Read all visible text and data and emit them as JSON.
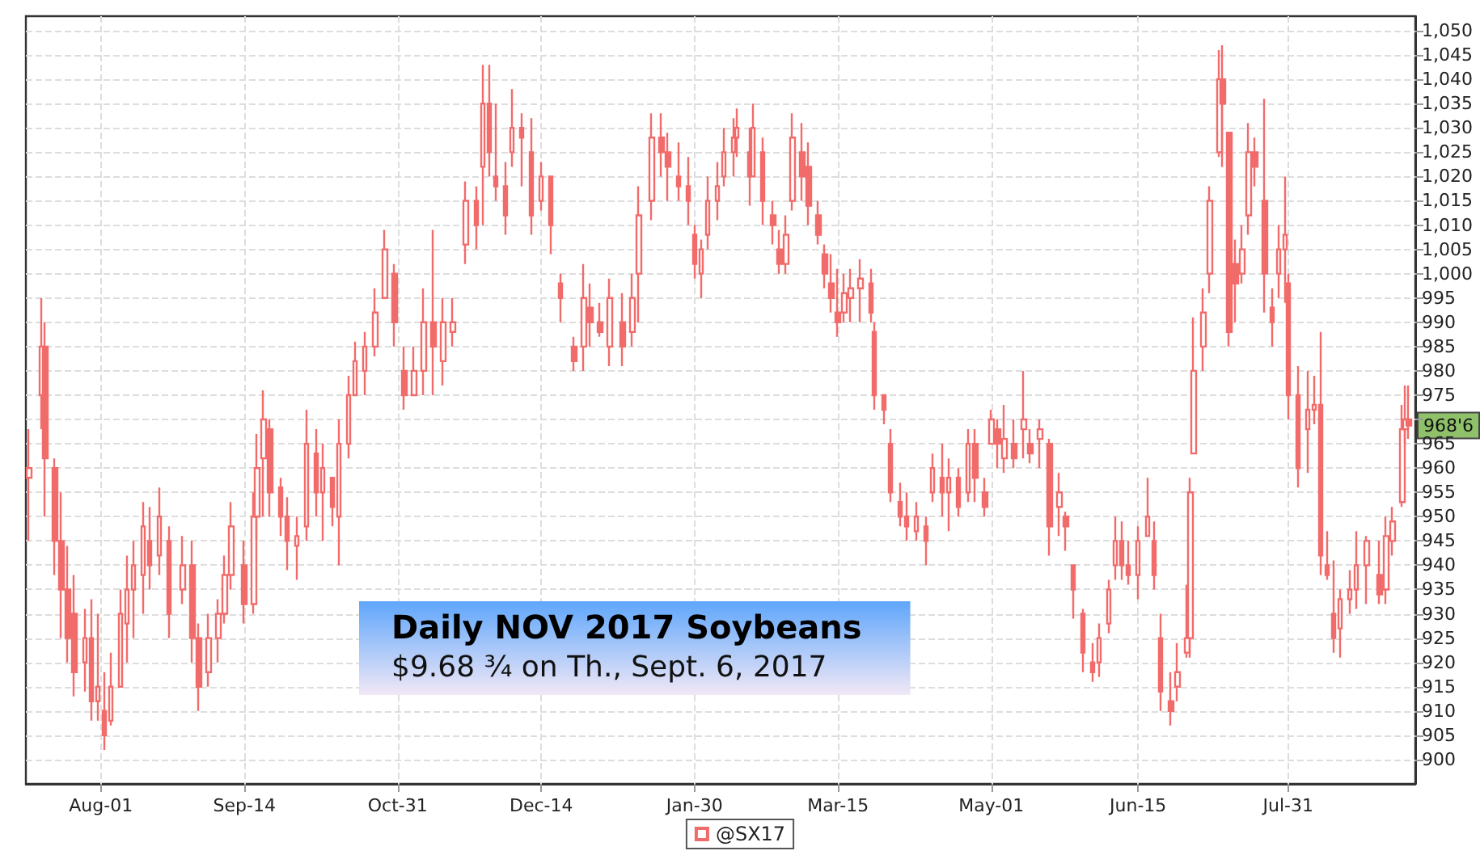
{
  "chart_data": {
    "type": "candlestick",
    "title": "Daily NOV 2017 Soybeans",
    "subtitle": "$9.68 ¾ on Th., Sept. 6, 2017",
    "series": [
      {
        "name": "@SX17",
        "color": "#f26b6b",
        "x": [
          "2016-07-10",
          "2016-07-14",
          "2016-07-15",
          "2016-07-18",
          "2016-07-20",
          "2016-07-22",
          "2016-07-24",
          "2016-07-27",
          "2016-07-29",
          "2016-07-31",
          "2016-08-02",
          "2016-08-04",
          "2016-08-07",
          "2016-08-09",
          "2016-08-11",
          "2016-08-14",
          "2016-08-16",
          "2016-08-19",
          "2016-08-22",
          "2016-08-26",
          "2016-08-29",
          "2016-08-31",
          "2016-09-03",
          "2016-09-06",
          "2016-09-08",
          "2016-09-10",
          "2016-09-14",
          "2016-09-17",
          "2016-09-18",
          "2016-09-20",
          "2016-09-22",
          "2016-09-25",
          "2016-09-27",
          "2016-09-30",
          "2016-10-03",
          "2016-10-06",
          "2016-10-08",
          "2016-10-11",
          "2016-10-13",
          "2016-10-16",
          "2016-10-18",
          "2016-10-21",
          "2016-10-24",
          "2016-10-27",
          "2016-10-30",
          "2016-11-02",
          "2016-11-05",
          "2016-11-08",
          "2016-11-11",
          "2016-11-14",
          "2016-11-17",
          "2016-11-21",
          "2016-11-24",
          "2016-11-26",
          "2016-11-28",
          "2016-11-30",
          "2016-12-03",
          "2016-12-05",
          "2016-12-08",
          "2016-12-11",
          "2016-12-14",
          "2016-12-17",
          "2016-12-20",
          "2016-12-24",
          "2016-12-27",
          "2016-12-29",
          "2017-01-01",
          "2017-01-04",
          "2017-01-08",
          "2017-01-11",
          "2017-01-13",
          "2017-01-17",
          "2017-01-20",
          "2017-01-22",
          "2017-01-25",
          "2017-01-28",
          "2017-01-30",
          "2017-02-01",
          "2017-02-03",
          "2017-02-06",
          "2017-02-08",
          "2017-02-11",
          "2017-02-12",
          "2017-02-16",
          "2017-02-17",
          "2017-02-20",
          "2017-02-23",
          "2017-02-25",
          "2017-02-27",
          "2017-03-01",
          "2017-03-04",
          "2017-03-06",
          "2017-03-09",
          "2017-03-11",
          "2017-03-13",
          "2017-03-15",
          "2017-03-17",
          "2017-03-19",
          "2017-03-22",
          "2017-03-25",
          "2017-03-26",
          "2017-03-29",
          "2017-03-31",
          "2017-04-03",
          "2017-04-05",
          "2017-04-08",
          "2017-04-11",
          "2017-04-13",
          "2017-04-16",
          "2017-04-18",
          "2017-04-21",
          "2017-04-24",
          "2017-04-26",
          "2017-04-29",
          "2017-05-01",
          "2017-05-03",
          "2017-05-05",
          "2017-05-08",
          "2017-05-11",
          "2017-05-13",
          "2017-05-16",
          "2017-05-19",
          "2017-05-22",
          "2017-05-24",
          "2017-05-26",
          "2017-05-29",
          "2017-06-01",
          "2017-06-03",
          "2017-06-06",
          "2017-06-08",
          "2017-06-10",
          "2017-06-12",
          "2017-06-15",
          "2017-06-18",
          "2017-06-20",
          "2017-06-22",
          "2017-06-25",
          "2017-06-27",
          "2017-06-30",
          "2017-07-01",
          "2017-07-02",
          "2017-07-05",
          "2017-07-07",
          "2017-07-10",
          "2017-07-11",
          "2017-07-13",
          "2017-07-15",
          "2017-07-17",
          "2017-07-19",
          "2017-07-21",
          "2017-07-24",
          "2017-07-26",
          "2017-07-28",
          "2017-07-30",
          "2017-07-31",
          "2017-08-03",
          "2017-08-06",
          "2017-08-08",
          "2017-08-10",
          "2017-08-12",
          "2017-08-14",
          "2017-08-16",
          "2017-08-19",
          "2017-08-21",
          "2017-08-24",
          "2017-08-28",
          "2017-08-30",
          "2017-09-01",
          "2017-09-04",
          "2017-09-05",
          "2017-09-06"
        ],
        "ohlc": [
          [
            958,
            968,
            945,
            960
          ],
          [
            975,
            995,
            968,
            985
          ],
          [
            985,
            990,
            950,
            962
          ],
          [
            960,
            962,
            938,
            945
          ],
          [
            945,
            955,
            925,
            935
          ],
          [
            935,
            944,
            920,
            925
          ],
          [
            930,
            938,
            913,
            918
          ],
          [
            920,
            931,
            914,
            925
          ],
          [
            925,
            933,
            908,
            912
          ],
          [
            912,
            930,
            908,
            915
          ],
          [
            910,
            918,
            902,
            905
          ],
          [
            908,
            922,
            907,
            915
          ],
          [
            915,
            935,
            915,
            930
          ],
          [
            928,
            942,
            920,
            935
          ],
          [
            935,
            945,
            925,
            940
          ],
          [
            938,
            953,
            930,
            948
          ],
          [
            945,
            952,
            935,
            940
          ],
          [
            942,
            956,
            938,
            950
          ],
          [
            945,
            948,
            925,
            930
          ],
          [
            935,
            946,
            932,
            940
          ],
          [
            940,
            945,
            920,
            925
          ],
          [
            925,
            928,
            910,
            915
          ],
          [
            918,
            930,
            915,
            925
          ],
          [
            925,
            933,
            920,
            930
          ],
          [
            930,
            942,
            928,
            938
          ],
          [
            938,
            953,
            935,
            948
          ],
          [
            940,
            945,
            928,
            932
          ],
          [
            932,
            955,
            930,
            950
          ],
          [
            950,
            967,
            945,
            960
          ],
          [
            962,
            976,
            950,
            970
          ],
          [
            968,
            970,
            950,
            955
          ],
          [
            956,
            958,
            946,
            950
          ],
          [
            950,
            954,
            939,
            945
          ],
          [
            944,
            950,
            937,
            946
          ],
          [
            948,
            972,
            945,
            965
          ],
          [
            963,
            968,
            950,
            955
          ],
          [
            955,
            965,
            945,
            960
          ],
          [
            958,
            958,
            948,
            952
          ],
          [
            950,
            970,
            940,
            965
          ],
          [
            965,
            979,
            962,
            975
          ],
          [
            975,
            986,
            975,
            982
          ],
          [
            980,
            988,
            975,
            985
          ],
          [
            985,
            997,
            983,
            992
          ],
          [
            995,
            1009,
            995,
            1005
          ],
          [
            1000,
            1002,
            985,
            990
          ],
          [
            980,
            985,
            972,
            975
          ],
          [
            975,
            985,
            975,
            980
          ],
          [
            980,
            997,
            975,
            990
          ],
          [
            990,
            1009,
            975,
            985
          ],
          [
            982,
            995,
            977,
            990
          ],
          [
            988,
            995,
            985,
            990
          ],
          [
            1006,
            1019,
            1002,
            1015
          ],
          [
            1015,
            1018,
            1005,
            1010
          ],
          [
            1022,
            1043,
            1010,
            1035
          ],
          [
            1035,
            1043,
            1020,
            1025
          ],
          [
            1020,
            1035,
            1015,
            1018
          ],
          [
            1018,
            1023,
            1008,
            1012
          ],
          [
            1025,
            1038,
            1022,
            1030
          ],
          [
            1030,
            1033,
            1018,
            1028
          ],
          [
            1025,
            1032,
            1008,
            1012
          ],
          [
            1015,
            1023,
            1013,
            1020
          ],
          [
            1020,
            1020,
            1004,
            1010
          ],
          [
            998,
            1000,
            990,
            995
          ],
          [
            985,
            987,
            980,
            982
          ],
          [
            985,
            1002,
            980,
            995
          ],
          [
            993,
            998,
            985,
            990
          ],
          [
            990,
            994,
            987,
            988
          ],
          [
            985,
            999,
            981,
            995
          ],
          [
            990,
            996,
            981,
            985
          ],
          [
            988,
            1000,
            985,
            995
          ],
          [
            1000,
            1018,
            990,
            1012
          ],
          [
            1015,
            1033,
            1011,
            1028
          ],
          [
            1028,
            1033,
            1020,
            1025
          ],
          [
            1025,
            1029,
            1015,
            1022
          ],
          [
            1020,
            1027,
            1015,
            1018
          ],
          [
            1018,
            1024,
            1010,
            1015
          ],
          [
            1008,
            1010,
            999,
            1002
          ],
          [
            1000,
            1007,
            995,
            1005
          ],
          [
            1008,
            1020,
            1005,
            1015
          ],
          [
            1015,
            1023,
            1011,
            1018
          ],
          [
            1020,
            1030,
            1018,
            1025
          ],
          [
            1025,
            1032,
            1020,
            1028
          ],
          [
            1028,
            1034,
            1024,
            1030
          ],
          [
            1025,
            1030,
            1014,
            1020
          ],
          [
            1020,
            1035,
            1020,
            1030
          ],
          [
            1025,
            1028,
            1010,
            1015
          ],
          [
            1012,
            1015,
            1006,
            1010
          ],
          [
            1005,
            1009,
            1000,
            1002
          ],
          [
            1002,
            1012,
            1000,
            1008
          ],
          [
            1015,
            1033,
            1013,
            1028
          ],
          [
            1025,
            1031,
            1015,
            1020
          ],
          [
            1022,
            1027,
            1010,
            1014
          ],
          [
            1012,
            1015,
            1006,
            1008
          ],
          [
            1004,
            1006,
            997,
            1000
          ],
          [
            998,
            1004,
            992,
            995
          ],
          [
            992,
            1001,
            987,
            990
          ],
          [
            992,
            1000,
            990,
            996
          ],
          [
            995,
            1001,
            990,
            997
          ],
          [
            997,
            1003,
            990,
            999
          ],
          [
            998,
            1001,
            990,
            992
          ],
          [
            988,
            990,
            972,
            975
          ],
          [
            975,
            975,
            969,
            972
          ],
          [
            965,
            968,
            953,
            955
          ],
          [
            953,
            957,
            948,
            950
          ],
          [
            950,
            955,
            945,
            948
          ],
          [
            947,
            953,
            945,
            950
          ],
          [
            948,
            950,
            940,
            945
          ],
          [
            955,
            963,
            953,
            960
          ],
          [
            958,
            965,
            950,
            955
          ],
          [
            955,
            962,
            947,
            958
          ],
          [
            958,
            960,
            950,
            952
          ],
          [
            955,
            968,
            953,
            965
          ],
          [
            965,
            968,
            953,
            958
          ],
          [
            955,
            958,
            950,
            952
          ],
          [
            965,
            972,
            965,
            970
          ],
          [
            968,
            970,
            960,
            965
          ],
          [
            962,
            973,
            959,
            966
          ],
          [
            965,
            970,
            960,
            962
          ],
          [
            968,
            980,
            962,
            970
          ],
          [
            965,
            968,
            961,
            963
          ],
          [
            966,
            970,
            960,
            968
          ],
          [
            965,
            966,
            942,
            948
          ],
          [
            952,
            959,
            946,
            955
          ],
          [
            950,
            951,
            943,
            948
          ],
          [
            940,
            940,
            929,
            935
          ],
          [
            930,
            931,
            918,
            922
          ],
          [
            920,
            924,
            916,
            918
          ],
          [
            920,
            928,
            917,
            925
          ],
          [
            928,
            937,
            926,
            935
          ],
          [
            940,
            950,
            937,
            945
          ],
          [
            945,
            949,
            937,
            940
          ],
          [
            940,
            945,
            936,
            938
          ],
          [
            938,
            948,
            933,
            945
          ],
          [
            946,
            958,
            946,
            950
          ],
          [
            945,
            949,
            935,
            938
          ],
          [
            925,
            930,
            910,
            914
          ],
          [
            912,
            918,
            907,
            910
          ],
          [
            915,
            924,
            912,
            918
          ],
          [
            922,
            936,
            921,
            925
          ],
          [
            925,
            958,
            921,
            955
          ],
          [
            963,
            991,
            963,
            980
          ],
          [
            985,
            997,
            980,
            992
          ],
          [
            1000,
            1018,
            996,
            1015
          ],
          [
            1025,
            1046,
            1024,
            1040
          ],
          [
            1040,
            1047,
            1022,
            1035
          ],
          [
            1029,
            1029,
            985,
            988
          ],
          [
            1002,
            1007,
            990,
            998
          ],
          [
            1000,
            1010,
            998,
            1005
          ],
          [
            1012,
            1031,
            1008,
            1025
          ],
          [
            1025,
            1028,
            1018,
            1022
          ],
          [
            1015,
            1036,
            992,
            1000
          ],
          [
            993,
            997,
            985,
            990
          ],
          [
            1000,
            1010,
            995,
            1005
          ],
          [
            1005,
            1020,
            994,
            1008
          ],
          [
            998,
            1000,
            970,
            975
          ],
          [
            975,
            981,
            956,
            960
          ],
          [
            968,
            980,
            959,
            972
          ],
          [
            972,
            979,
            969,
            973
          ],
          [
            973,
            988,
            938,
            942
          ],
          [
            940,
            947,
            937,
            938
          ],
          [
            930,
            941,
            922,
            925
          ],
          [
            927,
            935,
            921,
            933
          ],
          [
            933,
            939,
            930,
            935
          ],
          [
            935,
            947,
            931,
            940
          ],
          [
            940,
            946,
            932,
            945
          ],
          [
            938,
            945,
            932,
            934
          ],
          [
            935,
            950,
            932,
            946
          ],
          [
            945,
            952,
            942,
            949
          ],
          [
            953,
            973,
            952,
            968
          ],
          [
            968,
            977,
            965,
            970
          ],
          [
            970,
            977,
            966,
            968.75
          ]
        ]
      }
    ],
    "annotations": [
      {
        "text": "968'6",
        "x": "2017-09-06",
        "y": 968.75
      }
    ],
    "xlim": [
      "2016-07-09",
      "2017-09-08"
    ],
    "xticks": [
      {
        "value": "2016-08-01",
        "label": "Aug-01"
      },
      {
        "value": "2016-09-14",
        "label": "Sep-14"
      },
      {
        "value": "2016-10-31",
        "label": "Oct-31"
      },
      {
        "value": "2016-12-14",
        "label": "Dec-14"
      },
      {
        "value": "2017-01-30",
        "label": "Jan-30"
      },
      {
        "value": "2017-03-15",
        "label": "Mar-15"
      },
      {
        "value": "2017-05-01",
        "label": "May-01"
      },
      {
        "value": "2017-06-15",
        "label": "Jun-15"
      },
      {
        "value": "2017-07-31",
        "label": "Jul-31"
      }
    ],
    "ylim": [
      895,
      1053
    ],
    "yticks": [
      900,
      905,
      910,
      915,
      920,
      925,
      930,
      935,
      940,
      945,
      950,
      955,
      960,
      965,
      {
        "value": 970,
        "label": null
      },
      975,
      980,
      985,
      990,
      995,
      {
        "value": 1000,
        "label": "1,000"
      },
      {
        "value": 1005,
        "label": "1,005"
      },
      {
        "value": 1010,
        "label": "1,010"
      },
      {
        "value": 1015,
        "label": "1,015"
      },
      {
        "value": 1020,
        "label": "1,020"
      },
      {
        "value": 1025,
        "label": "1,025"
      },
      {
        "value": 1030,
        "label": "1,030"
      },
      {
        "value": 1035,
        "label": "1,035"
      },
      {
        "value": 1040,
        "label": "1,040"
      },
      {
        "value": 1045,
        "label": "1,045"
      },
      {
        "value": 1050,
        "label": "1,050"
      }
    ],
    "grid": true,
    "legend": "bottom"
  }
}
